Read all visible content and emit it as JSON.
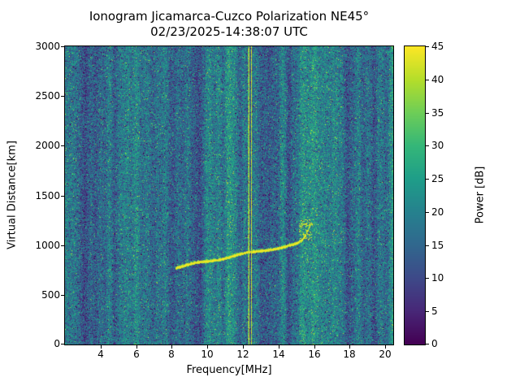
{
  "chart_data": {
    "type": "heatmap",
    "title": "Ionogram Jicamarca-Cuzco Polarization NE45°",
    "subtitle": "02/23/2025-14:38:07 UTC",
    "xlabel": "Frequency[MHz]",
    "ylabel": "Virtual Distance[km]",
    "colorbar_label": "Power [dB]",
    "xlim": [
      2.0,
      20.45
    ],
    "ylim": [
      0,
      3000
    ],
    "clim": [
      0,
      45
    ],
    "x_ticks": [
      4,
      6,
      8,
      10,
      12,
      14,
      16,
      18,
      20
    ],
    "y_ticks": [
      0,
      500,
      1000,
      1500,
      2000,
      2500,
      3000
    ],
    "colorbar_ticks": [
      0,
      5,
      10,
      15,
      20,
      25,
      30,
      35,
      40,
      45
    ],
    "colormap": "viridis",
    "viridis_anchors": [
      "#440154",
      "#482878",
      "#3e4a89",
      "#31688e",
      "#26828e",
      "#1f9e89",
      "#35b779",
      "#6ece58",
      "#b5de2b",
      "#fde725"
    ],
    "noise": {
      "mean_db": 17,
      "spread_db": 9,
      "band_std_db": 3.0,
      "seed": 42
    },
    "echo_trace": {
      "power_db": 44,
      "points": [
        [
          8.2,
          775
        ],
        [
          9.0,
          805
        ],
        [
          10.0,
          840
        ],
        [
          11.0,
          875
        ],
        [
          12.0,
          910
        ],
        [
          12.5,
          930
        ],
        [
          13.0,
          945
        ],
        [
          13.5,
          960
        ],
        [
          14.0,
          975
        ],
        [
          14.5,
          990
        ],
        [
          15.0,
          1010
        ],
        [
          15.3,
          1045
        ],
        [
          15.5,
          1095
        ],
        [
          15.65,
          1150
        ],
        [
          15.75,
          1200
        ]
      ]
    },
    "interference_lines_mhz": [
      12.32,
      12.45
    ],
    "scatter_dots": {
      "freq_range": [
        15.15,
        15.9
      ],
      "alt_range": [
        1050,
        1260
      ],
      "count": 70
    }
  }
}
